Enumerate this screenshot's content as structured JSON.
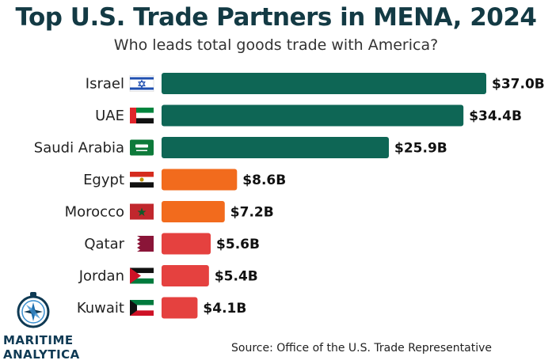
{
  "title": "Top U.S. Trade Partners in MENA, 2024",
  "subtitle": "Who leads total goods trade with America?",
  "source": "Source: Office of the U.S. Trade Representative",
  "logo": {
    "line1": "MARITIME",
    "line2": "ANALYTICA",
    "icon": "compass-icon"
  },
  "colors": {
    "high": "#0e6655",
    "mid": "#f26b1d",
    "low": "#e5413f"
  },
  "chart_data": {
    "type": "bar",
    "orientation": "horizontal",
    "categories": [
      "Israel",
      "UAE",
      "Saudi Arabia",
      "Egypt",
      "Morocco",
      "Qatar",
      "Jordan",
      "Kuwait"
    ],
    "values": [
      37.0,
      34.4,
      25.9,
      8.6,
      7.2,
      5.6,
      5.4,
      4.1
    ],
    "value_labels": [
      "$37.0B",
      "$34.4B",
      "$25.9B",
      "$8.6B",
      "$7.2B",
      "$5.6B",
      "$5.4B",
      "$4.1B"
    ],
    "bar_colors": [
      "#0e6655",
      "#0e6655",
      "#0e6655",
      "#f26b1d",
      "#f26b1d",
      "#e5413f",
      "#e5413f",
      "#e5413f"
    ],
    "flags": [
      "israel-flag-icon",
      "uae-flag-icon",
      "saudi-arabia-flag-icon",
      "egypt-flag-icon",
      "morocco-flag-icon",
      "qatar-flag-icon",
      "jordan-flag-icon",
      "kuwait-flag-icon"
    ],
    "title": "Top U.S. Trade Partners in MENA, 2024",
    "subtitle": "Who leads total goods trade with America?",
    "xlabel": "",
    "ylabel": "",
    "xlim": [
      0,
      37.0
    ],
    "grid": false,
    "legend": "none"
  }
}
